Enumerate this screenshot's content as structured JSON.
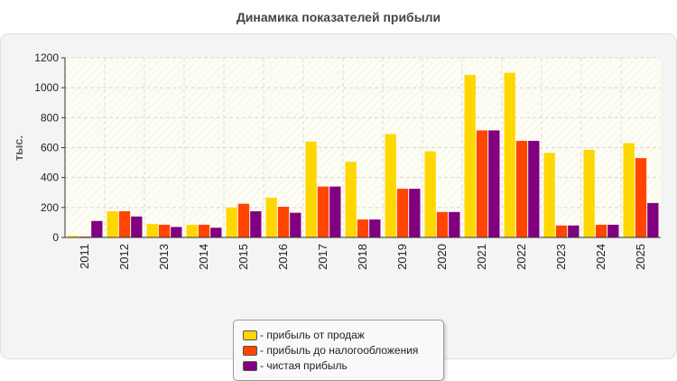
{
  "chart_data": {
    "type": "bar",
    "title": "Динамика показателей прибыли",
    "ylabel": "тыс.",
    "xlabel": "",
    "ylim": [
      0,
      1200
    ],
    "yticks": [
      0,
      200,
      400,
      600,
      800,
      1000,
      1200
    ],
    "grid": true,
    "legend_position": "bottom",
    "categories": [
      "2011",
      "2012",
      "2013",
      "2014",
      "2015",
      "2016",
      "2017",
      "2018",
      "2019",
      "2020",
      "2021",
      "2022",
      "2023",
      "2024",
      "2025"
    ],
    "series": [
      {
        "name": "- прибыль от продаж",
        "color": "#ffd700",
        "values": [
          10,
          175,
          90,
          85,
          200,
          265,
          640,
          505,
          690,
          575,
          1085,
          1100,
          565,
          585,
          630
        ]
      },
      {
        "name": "- прибыль до налогообложения",
        "color": "#ff4500",
        "values": [
          5,
          175,
          85,
          85,
          225,
          205,
          340,
          120,
          325,
          170,
          715,
          645,
          80,
          85,
          530
        ]
      },
      {
        "name": "- чистая прибыль",
        "color": "#800080",
        "values": [
          110,
          140,
          70,
          65,
          175,
          165,
          340,
          120,
          325,
          170,
          715,
          645,
          80,
          85,
          230
        ]
      }
    ]
  }
}
